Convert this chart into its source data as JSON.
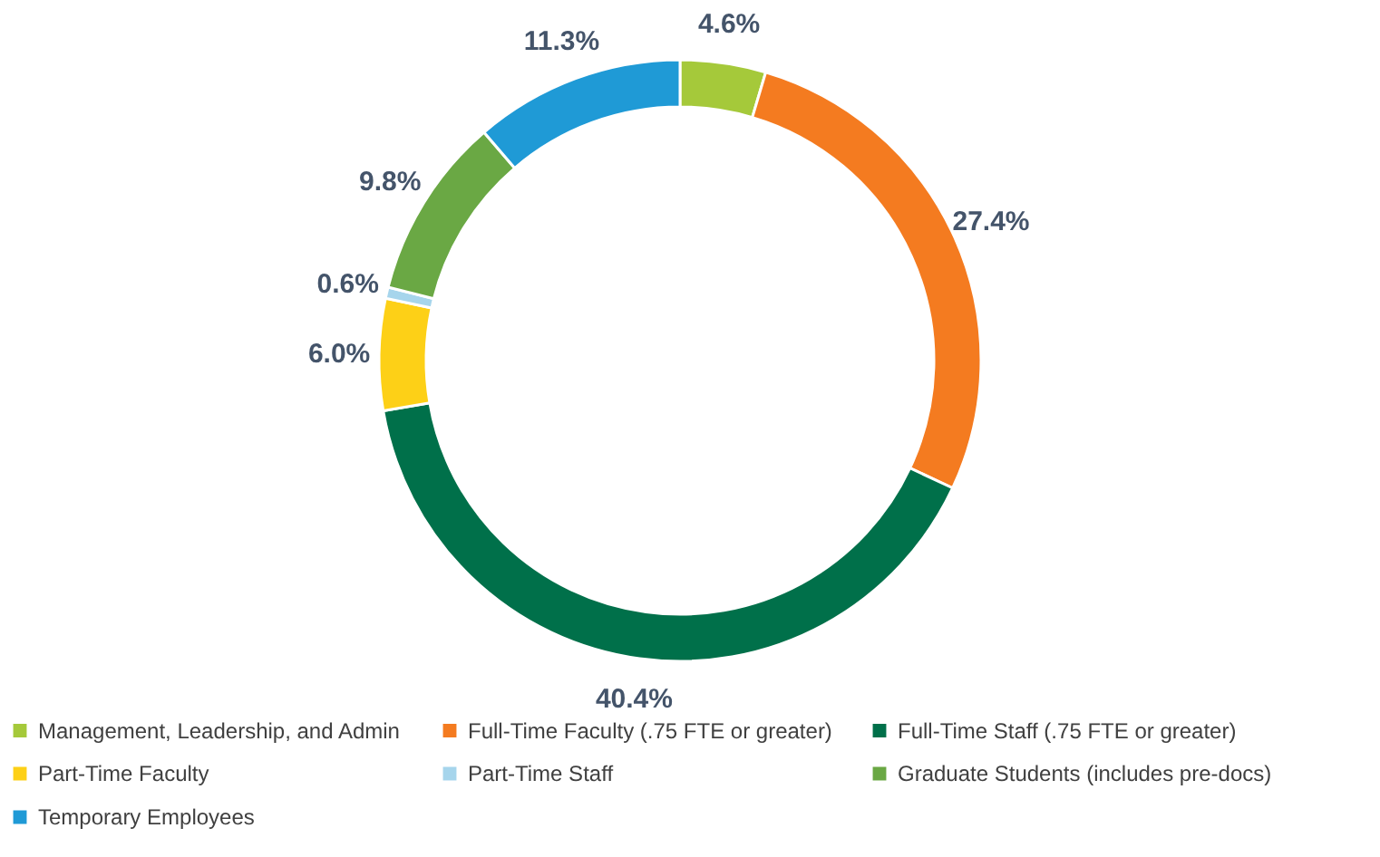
{
  "chart_data": {
    "type": "donut",
    "categories": [
      "Management, Leadership, and Admin",
      "Full-Time Faculty (.75 FTE or greater)",
      "Full-Time Staff (.75 FTE or greater)",
      "Part-Time Faculty",
      "Part-Time Staff",
      "Graduate Students (includes pre-docs)",
      "Temporary Employees"
    ],
    "values": [
      4.6,
      27.4,
      40.4,
      6.0,
      0.6,
      9.8,
      11.3
    ],
    "value_labels": [
      "4.6%",
      "27.4%",
      "40.4%",
      "6.0%",
      "0.6%",
      "9.8%",
      "11.3%"
    ],
    "colors": [
      "#a5c93a",
      "#f47b20",
      "#00704a",
      "#fdd017",
      "#a6d5ec",
      "#6aa844",
      "#1f9ad6"
    ],
    "legend": "bottom"
  }
}
